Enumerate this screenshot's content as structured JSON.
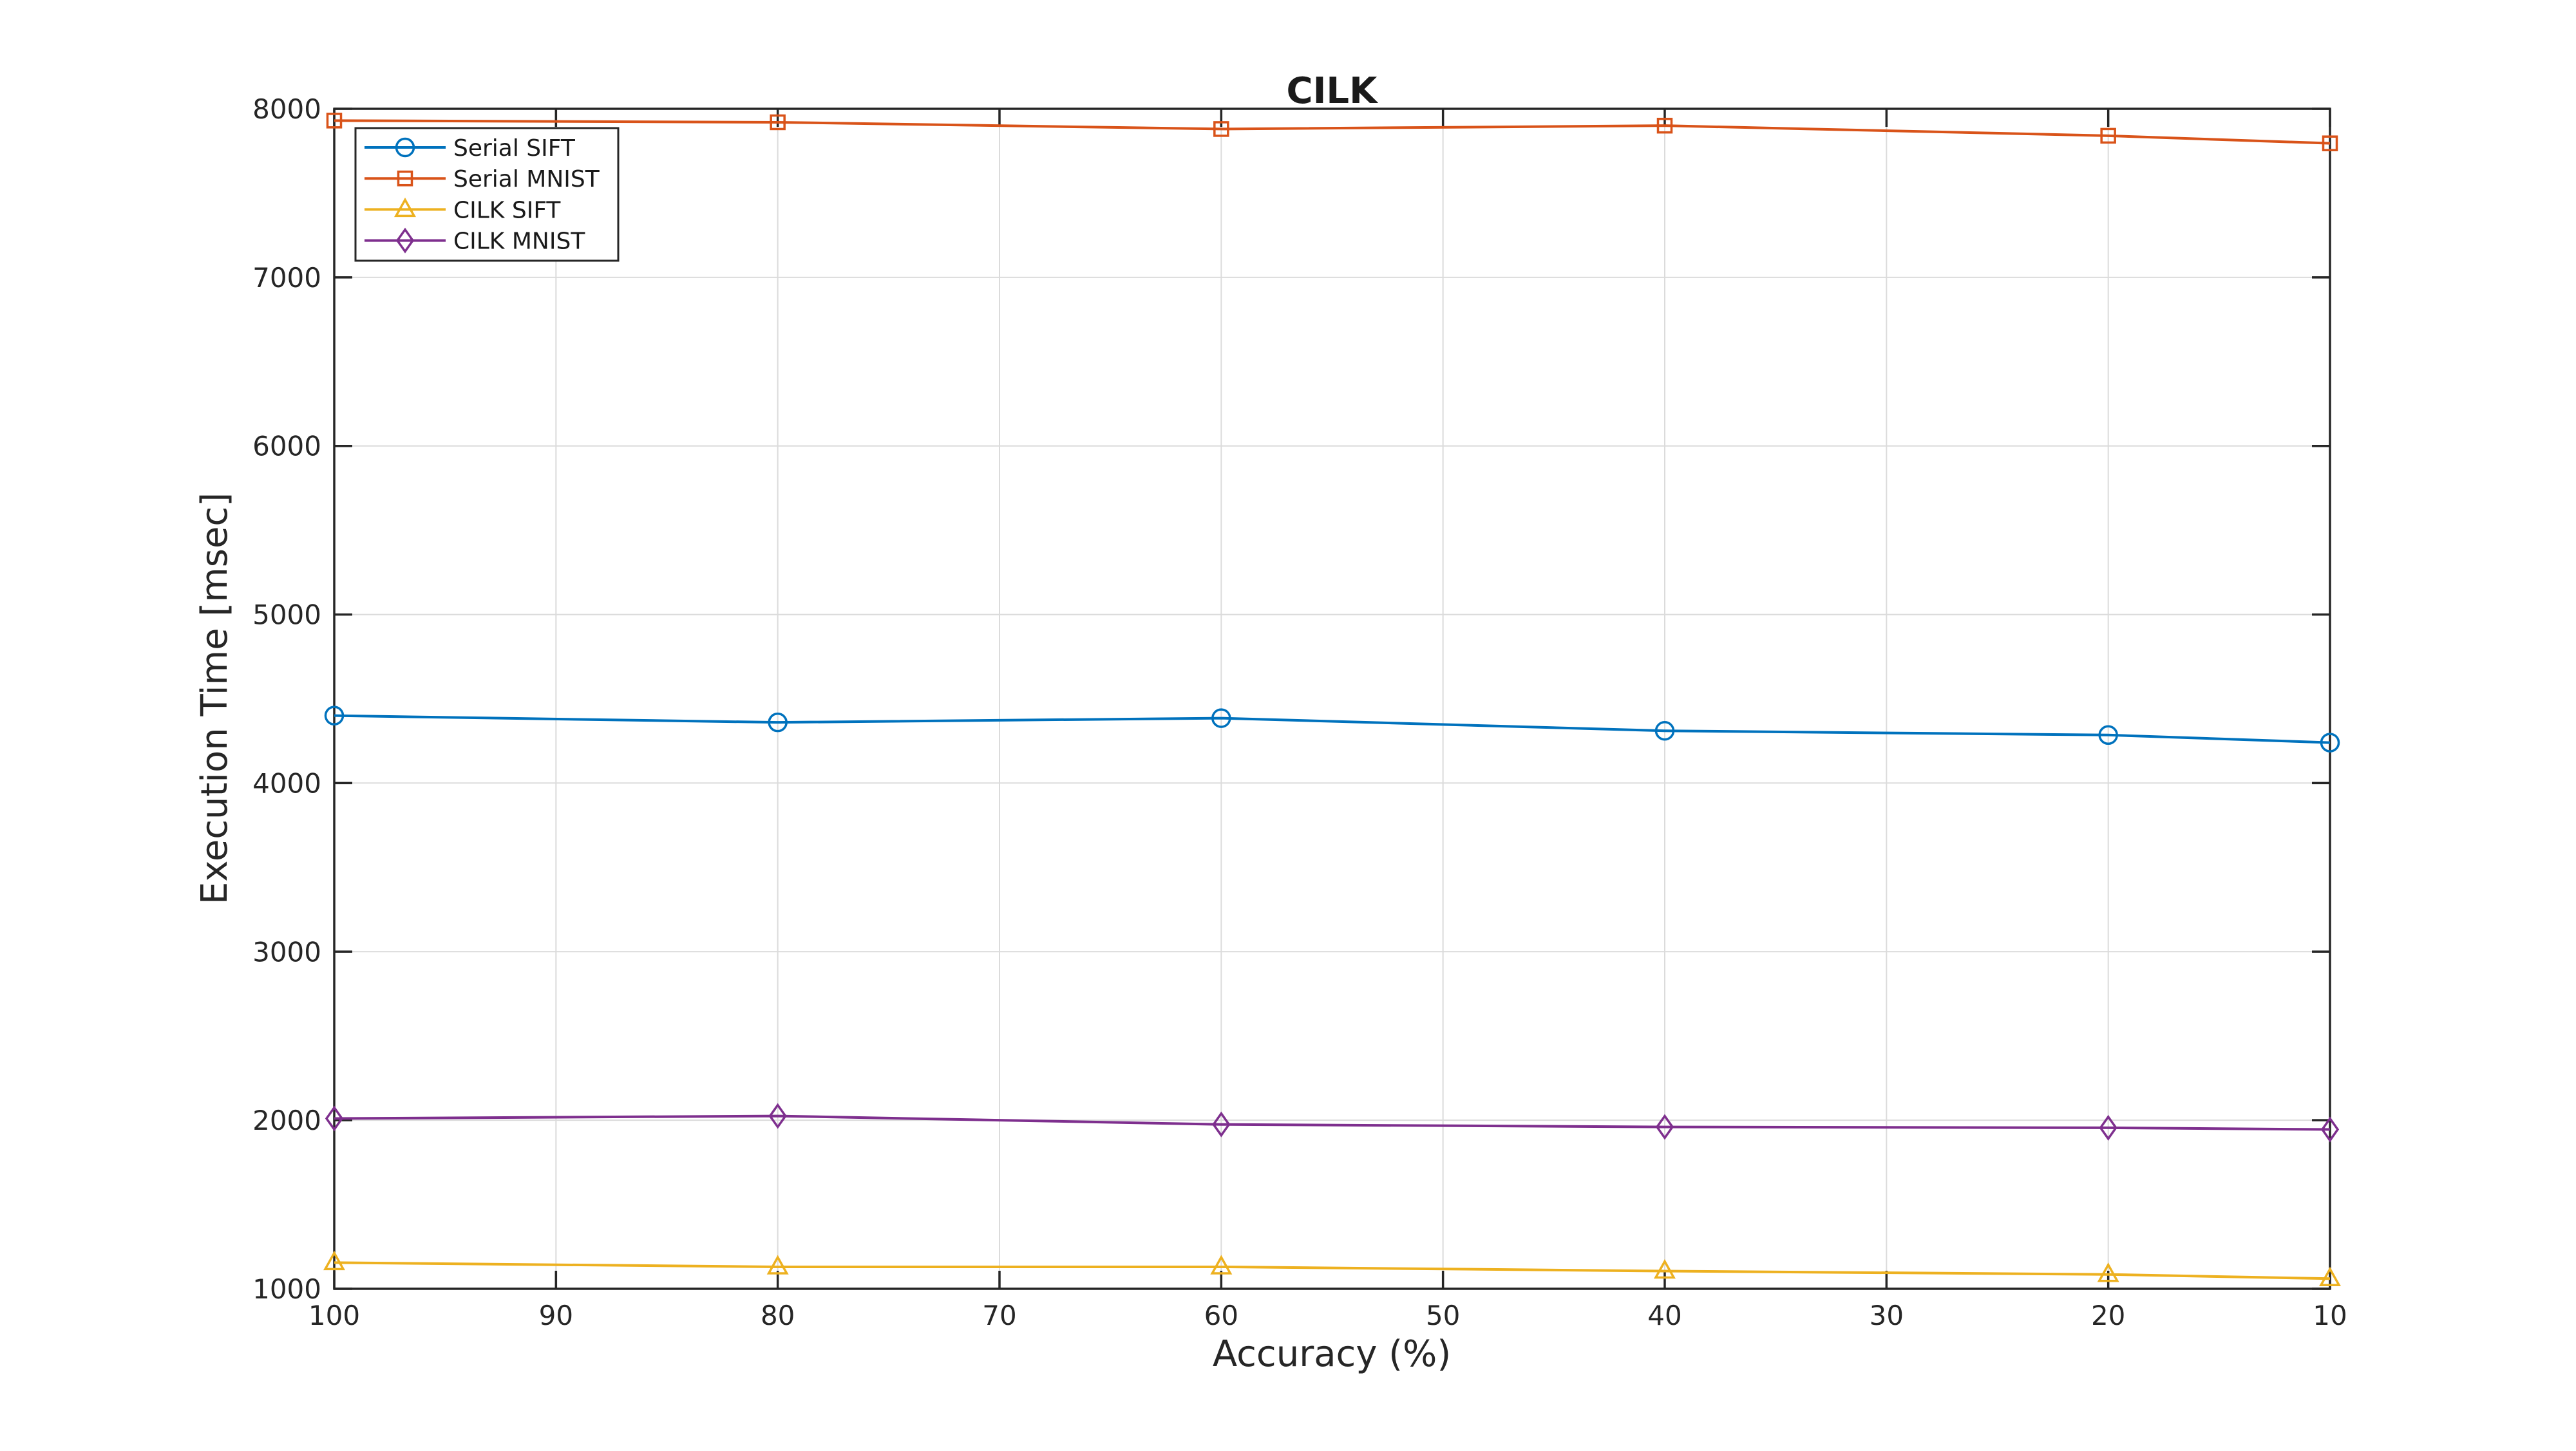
{
  "figure": {
    "background": "#ffffff"
  },
  "chart_data": {
    "type": "line",
    "title": "CILK",
    "xlabel": "Accuracy (%)",
    "ylabel": "Execution Time [msec]",
    "categories": [
      100,
      80,
      60,
      40,
      20,
      10
    ],
    "series": [
      {
        "name": "Serial SIFT",
        "color": "#0072BD",
        "marker": "circle",
        "values": [
          4400,
          4360,
          4385,
          4310,
          4285,
          4240
        ]
      },
      {
        "name": "Serial MNIST",
        "color": "#D95319",
        "marker": "square",
        "values": [
          7930,
          7920,
          7880,
          7900,
          7840,
          7795
        ]
      },
      {
        "name": "CILK SIFT",
        "color": "#EDB120",
        "marker": "triangle",
        "values": [
          1155,
          1130,
          1130,
          1105,
          1085,
          1060
        ]
      },
      {
        "name": "CILK MNIST",
        "color": "#7E2F8E",
        "marker": "diamond",
        "values": [
          2010,
          2025,
          1975,
          1960,
          1955,
          1945
        ]
      }
    ],
    "xlim": [
      100,
      10
    ],
    "ylim": [
      1000,
      8000
    ],
    "x_axis_reversed": true,
    "x_ticks": [
      100,
      90,
      80,
      70,
      60,
      50,
      40,
      30,
      20,
      10
    ],
    "y_ticks": [
      1000,
      2000,
      3000,
      4000,
      5000,
      6000,
      7000,
      8000
    ],
    "grid": true,
    "legend_position": "top-left-inside",
    "axis_color": "#262626",
    "grid_color": "#dbdbdb",
    "plot_background": "#ffffff"
  }
}
